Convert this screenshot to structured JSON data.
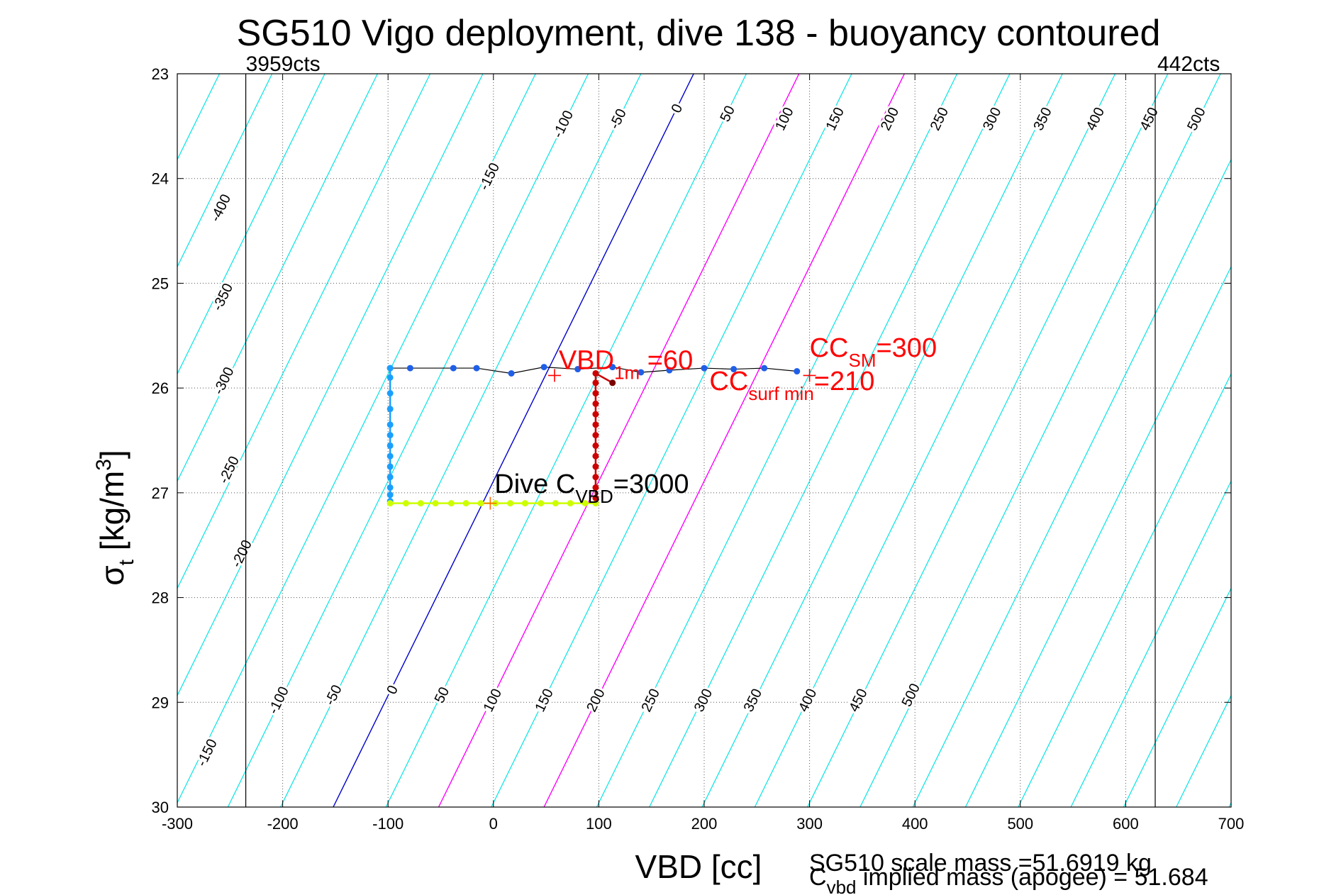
{
  "chart_data": {
    "type": "line",
    "title": "SG510 Vigo deployment, dive 138 - buoyancy contoured",
    "xlabel": "VBD [cc]",
    "ylabel": {
      "main": "σ",
      "sub": "t",
      "rest": " [kg/m",
      "sup": "3",
      "close": "]"
    },
    "xlim": [
      -300,
      700
    ],
    "ylim": [
      23,
      30
    ],
    "y_reversed": true,
    "grid": true,
    "xticks": [
      -300,
      -200,
      -100,
      0,
      100,
      200,
      300,
      400,
      500,
      600,
      700
    ],
    "yticks": [
      23,
      24,
      25,
      26,
      27,
      28,
      29,
      30
    ],
    "contours": {
      "levels": [
        -400,
        -350,
        -300,
        -250,
        -200,
        -150,
        -100,
        -50,
        0,
        50,
        100,
        150,
        200,
        250,
        300,
        350,
        400,
        450,
        500
      ],
      "zero_level_x_at_top": 190,
      "zero_level_x_at_bottom": -152,
      "default_color": "#00e5e5",
      "zero_color": "#0000cc",
      "highlight_levels": [
        100,
        200
      ],
      "highlight_color": "#ff00ff",
      "top_labels": [
        {
          "text": "-400",
          "x": -255,
          "y": 24.3
        },
        {
          "text": "-350",
          "x": -253,
          "y": 25.15
        },
        {
          "text": "-300",
          "x": -252,
          "y": 25.95
        },
        {
          "text": "-250",
          "x": -247,
          "y": 26.8
        },
        {
          "text": "-200",
          "x": -235,
          "y": 27.6
        },
        {
          "text": "-150",
          "x": 0,
          "y": 24.0
        },
        {
          "text": "-100",
          "x": 70,
          "y": 23.5
        },
        {
          "text": "-50",
          "x": 122,
          "y": 23.45
        },
        {
          "text": "0",
          "x": 178,
          "y": 23.35
        },
        {
          "text": "50",
          "x": 226,
          "y": 23.4
        },
        {
          "text": "100",
          "x": 280,
          "y": 23.45
        },
        {
          "text": "150",
          "x": 328,
          "y": 23.45
        },
        {
          "text": "200",
          "x": 380,
          "y": 23.45
        },
        {
          "text": "250",
          "x": 427,
          "y": 23.45
        },
        {
          "text": "300",
          "x": 477,
          "y": 23.45
        },
        {
          "text": "350",
          "x": 525,
          "y": 23.45
        },
        {
          "text": "400",
          "x": 575,
          "y": 23.45
        },
        {
          "text": "450",
          "x": 626,
          "y": 23.45
        },
        {
          "text": "500",
          "x": 671,
          "y": 23.45
        }
      ],
      "bottom_labels": [
        {
          "text": "-150",
          "x": -268,
          "y": 29.5
        },
        {
          "text": "-100",
          "x": -200,
          "y": 29.0
        },
        {
          "text": "-50",
          "x": -148,
          "y": 28.95
        },
        {
          "text": "0",
          "x": -92,
          "y": 28.9
        },
        {
          "text": "50",
          "x": -45,
          "y": 28.95
        },
        {
          "text": "100",
          "x": 3,
          "y": 29.0
        },
        {
          "text": "150",
          "x": 52,
          "y": 29.0
        },
        {
          "text": "200",
          "x": 101,
          "y": 29.0
        },
        {
          "text": "250",
          "x": 153,
          "y": 29.0
        },
        {
          "text": "300",
          "x": 203,
          "y": 29.0
        },
        {
          "text": "350",
          "x": 250,
          "y": 29.0
        },
        {
          "text": "400",
          "x": 302,
          "y": 29.0
        },
        {
          "text": "450",
          "x": 350,
          "y": 29.0
        },
        {
          "text": "500",
          "x": 400,
          "y": 28.95
        }
      ]
    },
    "vertical_lines": [
      {
        "x": -235,
        "label": "3959cts",
        "label_x": -235
      },
      {
        "x": 628,
        "label": "442cts",
        "label_x": 630
      }
    ],
    "series": [
      {
        "name": "surface_trace",
        "color": "#000000",
        "points": [
          [
            -98,
            25.81
          ],
          [
            -79,
            25.81
          ],
          [
            -38,
            25.81
          ],
          [
            -16,
            25.81
          ],
          [
            17,
            25.86
          ],
          [
            48,
            25.8
          ],
          [
            80,
            25.82
          ],
          [
            113,
            25.8
          ],
          [
            140,
            25.85
          ],
          [
            167,
            25.83
          ],
          [
            200,
            25.81
          ],
          [
            228,
            25.82
          ],
          [
            257,
            25.81
          ],
          [
            288,
            25.84
          ]
        ],
        "marker_color": "#1f5fe8"
      },
      {
        "name": "dive_profile",
        "color": "#1a9fff",
        "points": [
          [
            -98,
            25.81
          ],
          [
            -98,
            25.9
          ],
          [
            -98,
            26.05
          ],
          [
            -98,
            26.2
          ],
          [
            -98,
            26.35
          ],
          [
            -98,
            26.45
          ],
          [
            -98,
            26.55
          ],
          [
            -98,
            26.65
          ],
          [
            -98,
            26.75
          ],
          [
            -98,
            26.85
          ],
          [
            -98,
            26.95
          ],
          [
            -98,
            27.02
          ],
          [
            -98,
            27.08
          ]
        ]
      },
      {
        "name": "apogee_pump",
        "color": "#ccff00",
        "points": [
          [
            -98,
            27.1
          ],
          [
            -83,
            27.1
          ],
          [
            -69,
            27.1
          ],
          [
            -55,
            27.1
          ],
          [
            -40,
            27.1
          ],
          [
            -26,
            27.1
          ],
          [
            -12,
            27.1
          ],
          [
            2,
            27.1
          ],
          [
            16,
            27.1
          ],
          [
            30,
            27.1
          ],
          [
            45,
            27.1
          ],
          [
            59,
            27.1
          ],
          [
            73,
            27.1
          ],
          [
            87,
            27.1
          ],
          [
            97,
            27.1
          ]
        ]
      },
      {
        "name": "climb_profile",
        "color": "#cc0000",
        "points": [
          [
            97,
            27.05
          ],
          [
            97,
            26.95
          ],
          [
            97,
            26.85
          ],
          [
            97,
            26.75
          ],
          [
            97,
            26.65
          ],
          [
            97,
            26.55
          ],
          [
            97,
            26.45
          ],
          [
            97,
            26.35
          ],
          [
            97,
            26.25
          ],
          [
            97,
            26.15
          ],
          [
            97,
            26.05
          ],
          [
            97,
            25.95
          ],
          [
            97,
            25.86
          ],
          [
            113,
            25.95
          ]
        ]
      }
    ],
    "markers": [
      {
        "label": "VBD 1m marker",
        "x": 58,
        "y": 25.88,
        "color": "#ff0000"
      },
      {
        "label": "CC SM marker",
        "x": 300,
        "y": 25.88,
        "color": "#ff0000"
      },
      {
        "label": "Dive C VBD marker",
        "x": -3,
        "y": 27.1,
        "color": "#ff6600"
      }
    ],
    "annotations": [
      {
        "name": "vbd-1m-annotation",
        "base": "VBD",
        "sub": "1m",
        "rest": " =60",
        "color": "#ff0000",
        "x": 62,
        "y": 25.82
      },
      {
        "name": "cc-sm-annotation",
        "base": "CC",
        "sub": "SM",
        "rest": "=300",
        "color": "#ff0000",
        "x": 300,
        "y": 25.7
      },
      {
        "name": "cc-surf-min-annotation",
        "base": "CC",
        "sub": "surf min",
        "rest": "=210",
        "color": "#ff0000",
        "x": 205,
        "y": 26.02
      },
      {
        "name": "dive-cvbd-annotation",
        "base": "Dive C",
        "sub": "VBD",
        "rest": "=3000",
        "color": "#000000",
        "x": 1,
        "y": 27.0
      }
    ],
    "footer": {
      "scale_mass": "SG510 scale mass =51.6919 kg",
      "implied_mass_base": "C",
      "implied_mass_sub": "vbd",
      "implied_mass_rest": " implied mass (apogee) = 51.684"
    }
  },
  "colors": {
    "axis": "#000000",
    "grid": "#555555",
    "background": "#ffffff"
  }
}
